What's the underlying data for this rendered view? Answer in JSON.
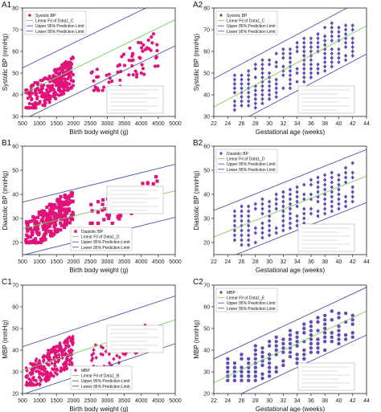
{
  "panels": [
    {
      "id": "A1",
      "type": "scatter",
      "xlabel": "Birth body weight (g)",
      "ylabel": "Systolic BP (mmHg)",
      "xlim": [
        500,
        5000
      ],
      "ylim": [
        30,
        80
      ],
      "xticks": [
        "500",
        "1000",
        "1500",
        "2000",
        "2500",
        "3000",
        "3500",
        "4000",
        "4500",
        "5000"
      ],
      "yticks": [
        "30",
        "40",
        "50",
        "60",
        "70",
        "80"
      ],
      "marker_color": "#e0137a",
      "marker": "circle",
      "legend": [
        "Systolic BP",
        "Linear Fit of Data1_C",
        "Upper 95% Prediction Limit",
        "Lower 95% Prediction Limit"
      ],
      "legend_pos": "top-left",
      "fit": {
        "intercept": 36.6,
        "slope": 0.0076
      },
      "band": 12,
      "clusters": [
        {
          "x": [
            600,
            2000
          ],
          "y": [
            34,
            60
          ],
          "n": 260
        },
        {
          "x": [
            2500,
            4500
          ],
          "y": [
            42,
            72
          ],
          "n": 70
        }
      ]
    },
    {
      "id": "A2",
      "type": "scatter",
      "xlabel": "Gestational age (weeks)",
      "ylabel": "Systolic BP (mmHg)",
      "xlim": [
        22,
        44
      ],
      "ylim": [
        30,
        80
      ],
      "xticks": [
        "22",
        "24",
        "26",
        "28",
        "30",
        "32",
        "34",
        "36",
        "38",
        "40",
        "42",
        "44"
      ],
      "yticks": [
        "30",
        "40",
        "50",
        "60",
        "70",
        "80"
      ],
      "marker_color": "#5a4fb3",
      "marker": "diamond",
      "legend": [
        "Systolic BP",
        "Linear Fit of Data1_C",
        "Upper 95% Prediction Limit",
        "Lower 95% Prediction Limit"
      ],
      "legend_pos": "top-left",
      "fit": {
        "intercept": -3.0,
        "slope": 1.7
      },
      "band": 13,
      "columns": {
        "x": [
          25,
          42
        ],
        "y_low": 33,
        "y_high": 73
      }
    },
    {
      "id": "B1",
      "type": "scatter",
      "xlabel": "Birth body weight (g)",
      "ylabel": "Diastolic BP (mmHg)",
      "xlim": [
        500,
        5000
      ],
      "ylim": [
        15,
        60
      ],
      "xticks": [
        "500",
        "1000",
        "1500",
        "2000",
        "2500",
        "3000",
        "3500",
        "4000",
        "4500",
        "5000"
      ],
      "yticks": [
        "20",
        "30",
        "40",
        "50",
        "60"
      ],
      "marker_color": "#e0137a",
      "marker": "square",
      "legend": [
        "Diastolic BP",
        "Linear Fit of Data1_D",
        "Upper 95% Prediction Limit",
        "Lower 95% Prediction Limit"
      ],
      "legend_pos": "bottom-center",
      "fit": {
        "intercept": 24.0,
        "slope": 0.0035
      },
      "band": 11,
      "clusters": [
        {
          "x": [
            600,
            2000
          ],
          "y": [
            20,
            45
          ],
          "n": 240
        },
        {
          "x": [
            2500,
            4500
          ],
          "y": [
            28,
            50
          ],
          "n": 60
        }
      ]
    },
    {
      "id": "B2",
      "type": "scatter",
      "xlabel": "Gestational age (weeks)",
      "ylabel": "Diastolic BP (mmHg)",
      "xlim": [
        22,
        44
      ],
      "ylim": [
        15,
        60
      ],
      "xticks": [
        "22",
        "24",
        "26",
        "28",
        "30",
        "32",
        "34",
        "36",
        "38",
        "40",
        "42",
        "44"
      ],
      "yticks": [
        "20",
        "30",
        "40",
        "50",
        "60"
      ],
      "marker_color": "#5a4fb3",
      "marker": "diamond",
      "legend": [
        "Diastolic BP",
        "Linear Fit of Data1_D",
        "Upper 95% Prediction Limit",
        "Lower 95% Prediction Limit"
      ],
      "legend_pos": "top-left",
      "fit": {
        "intercept": -3.0,
        "slope": 1.15
      },
      "band": 11,
      "columns": {
        "x": [
          25,
          42
        ],
        "y_low": 19,
        "y_high": 53
      }
    },
    {
      "id": "C1",
      "type": "scatter",
      "xlabel": "Birth body weight (g)",
      "ylabel": "MBP (mmHg)",
      "xlim": [
        500,
        5000
      ],
      "ylim": [
        20,
        70
      ],
      "xticks": [
        "500",
        "1000",
        "1500",
        "2000",
        "2500",
        "3000",
        "3500",
        "4000",
        "4500",
        "5000"
      ],
      "yticks": [
        "20",
        "30",
        "40",
        "50",
        "60",
        "70"
      ],
      "marker_color": "#e0137a",
      "marker": "diamond",
      "legend": [
        "MBP",
        "Linear Fit of Data1_B",
        "Upper 95% Prediction Limit",
        "Lower 95% Prediction Limit"
      ],
      "legend_pos": "bottom-center",
      "fit": {
        "intercept": 28.0,
        "slope": 0.0052
      },
      "band": 11,
      "clusters": [
        {
          "x": [
            600,
            2000
          ],
          "y": [
            24,
            50
          ],
          "n": 260
        },
        {
          "x": [
            2500,
            4500
          ],
          "y": [
            32,
            58
          ],
          "n": 70
        }
      ]
    },
    {
      "id": "C2",
      "type": "scatter",
      "xlabel": "Gestational age (weeks)",
      "ylabel": "MBP (mmHg)",
      "xlim": [
        22,
        44
      ],
      "ylim": [
        20,
        70
      ],
      "xticks": [
        "22",
        "24",
        "26",
        "28",
        "30",
        "32",
        "34",
        "36",
        "38",
        "40",
        "42",
        "44"
      ],
      "yticks": [
        "20",
        "30",
        "40",
        "50",
        "60",
        "70"
      ],
      "marker_color": "#5a4fb3",
      "marker": "hexagon",
      "legend": [
        "MBP",
        "Linear Fit of Data1_E",
        "Upper 95% Prediction Limit",
        "Lower 95% Prediction Limit"
      ],
      "legend_pos": "top-left",
      "fit": {
        "intercept": -8.0,
        "slope": 1.5
      },
      "band": 11,
      "columns": {
        "x": [
          24,
          42
        ],
        "y_low": 26,
        "y_high": 58
      }
    }
  ],
  "colors": {
    "fit": "#7ccb5f",
    "limits": "#4a58a8",
    "axis": "#222222"
  }
}
